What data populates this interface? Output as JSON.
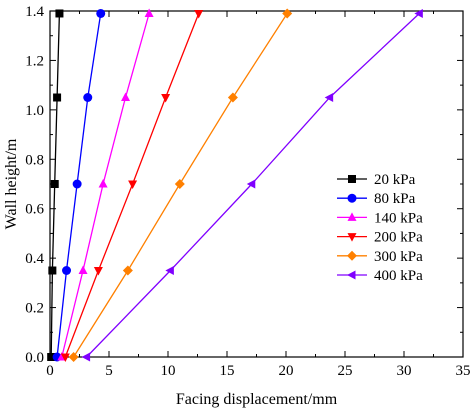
{
  "chart_data": {
    "type": "line",
    "title": "",
    "xlabel": "Facing displacement/mm",
    "ylabel": "Wall height/m",
    "xlim": [
      0,
      35
    ],
    "ylim": [
      0.0,
      1.4
    ],
    "xticks": [
      0,
      5,
      10,
      15,
      20,
      25,
      30,
      35
    ],
    "yticks": [
      0.0,
      0.2,
      0.4,
      0.6,
      0.8,
      1.0,
      1.2,
      1.4
    ],
    "xtick_labels": [
      "0",
      "5",
      "10",
      "15",
      "20",
      "25",
      "30",
      "35"
    ],
    "ytick_labels": [
      "0.0",
      "0.2",
      "0.4",
      "0.6",
      "0.8",
      "1.0",
      "1.2",
      "1.4"
    ],
    "grid": false,
    "legend_position": "right",
    "series": [
      {
        "name": "20 kPa",
        "color": "#000000",
        "marker": "square",
        "x": [
          0.1,
          0.2,
          0.4,
          0.6,
          0.8
        ],
        "y": [
          0.0,
          0.35,
          0.7,
          1.05,
          1.39
        ]
      },
      {
        "name": "80 kPa",
        "color": "#0000ff",
        "marker": "circle",
        "x": [
          0.6,
          1.4,
          2.3,
          3.2,
          4.3
        ],
        "y": [
          0.0,
          0.35,
          0.7,
          1.05,
          1.39
        ]
      },
      {
        "name": "140 kPa",
        "color": "#ff00ff",
        "marker": "triangle-up",
        "x": [
          1.0,
          2.8,
          4.5,
          6.4,
          8.4
        ],
        "y": [
          0.0,
          0.35,
          0.7,
          1.05,
          1.39
        ]
      },
      {
        "name": "200 kPa",
        "color": "#ff0000",
        "marker": "triangle-down",
        "x": [
          1.3,
          4.1,
          7.0,
          9.8,
          12.6
        ],
        "y": [
          0.0,
          0.35,
          0.7,
          1.05,
          1.39
        ]
      },
      {
        "name": "300 kPa",
        "color": "#ff8000",
        "marker": "diamond",
        "x": [
          2.0,
          6.6,
          11.0,
          15.5,
          20.1
        ],
        "y": [
          0.0,
          0.35,
          0.7,
          1.05,
          1.39
        ]
      },
      {
        "name": "400 kPa",
        "color": "#8000ff",
        "marker": "triangle-left",
        "x": [
          3.1,
          10.2,
          17.1,
          23.7,
          31.3
        ],
        "y": [
          0.0,
          0.35,
          0.7,
          1.05,
          1.39
        ]
      }
    ]
  }
}
